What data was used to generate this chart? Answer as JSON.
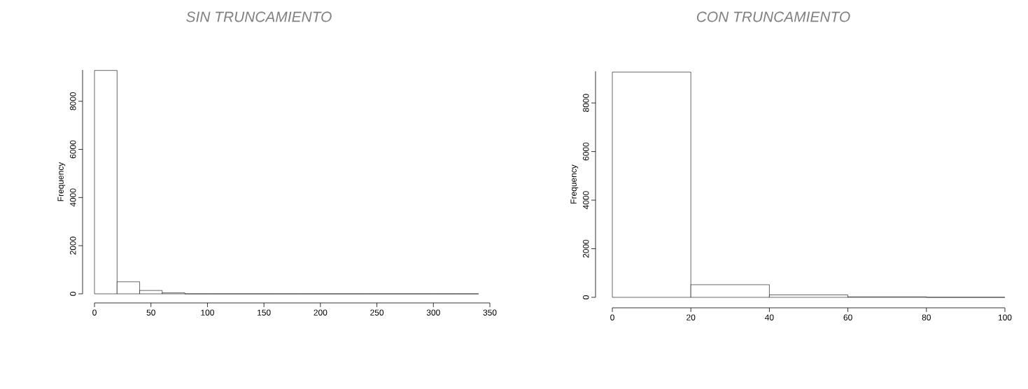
{
  "chart_data": [
    {
      "type": "histogram",
      "title": "SIN TRUNCAMIENTO",
      "ylabel": "Frequency",
      "bins": [
        0,
        20,
        40,
        60,
        80,
        100,
        120,
        140,
        160,
        180,
        200,
        220,
        240,
        260,
        280,
        300,
        320,
        340
      ],
      "values": [
        9280,
        500,
        140,
        40,
        0,
        0,
        0,
        0,
        0,
        0,
        0,
        0,
        0,
        0,
        0,
        0,
        0
      ],
      "xlim": [
        0,
        350
      ],
      "xticks": [
        0,
        50,
        100,
        150,
        200,
        250,
        300,
        350
      ],
      "ylim": [
        0,
        9300
      ],
      "yticks": [
        0,
        2000,
        4000,
        6000,
        8000
      ]
    },
    {
      "type": "histogram",
      "title": "CON TRUNCAMIENTO",
      "ylabel": "Frequency",
      "bins": [
        0,
        20,
        40,
        60,
        80,
        100
      ],
      "values": [
        9270,
        520,
        100,
        20,
        0
      ],
      "xlim": [
        0,
        100
      ],
      "xticks": [
        0,
        20,
        40,
        60,
        80,
        100
      ],
      "ylim": [
        0,
        9300
      ],
      "yticks": [
        0,
        2000,
        4000,
        6000,
        8000
      ]
    }
  ]
}
